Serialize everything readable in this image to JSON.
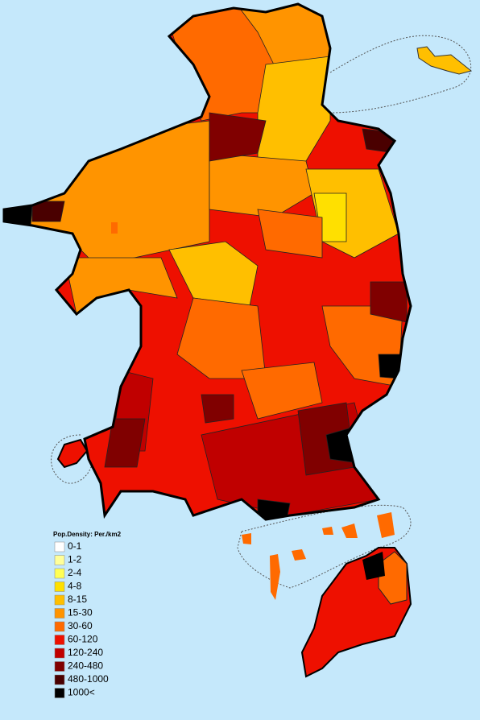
{
  "legend": {
    "title": "Pop.Density: Per./km2",
    "items": [
      {
        "label": "0-1",
        "color": "#ffffff"
      },
      {
        "label": "1-2",
        "color": "#ffff99"
      },
      {
        "label": "2-4",
        "color": "#ffff55"
      },
      {
        "label": "4-8",
        "color": "#ffe000"
      },
      {
        "label": "8-15",
        "color": "#ffbf00"
      },
      {
        "label": "15-30",
        "color": "#ff9400"
      },
      {
        "label": "30-60",
        "color": "#ff6a00"
      },
      {
        "label": "60-120",
        "color": "#ee1000"
      },
      {
        "label": "120-240",
        "color": "#c00000"
      },
      {
        "label": "240-480",
        "color": "#800000"
      },
      {
        "label": "480-1000",
        "color": "#4a0000"
      },
      {
        "label": "1000<",
        "color": "#000000"
      }
    ]
  }
}
